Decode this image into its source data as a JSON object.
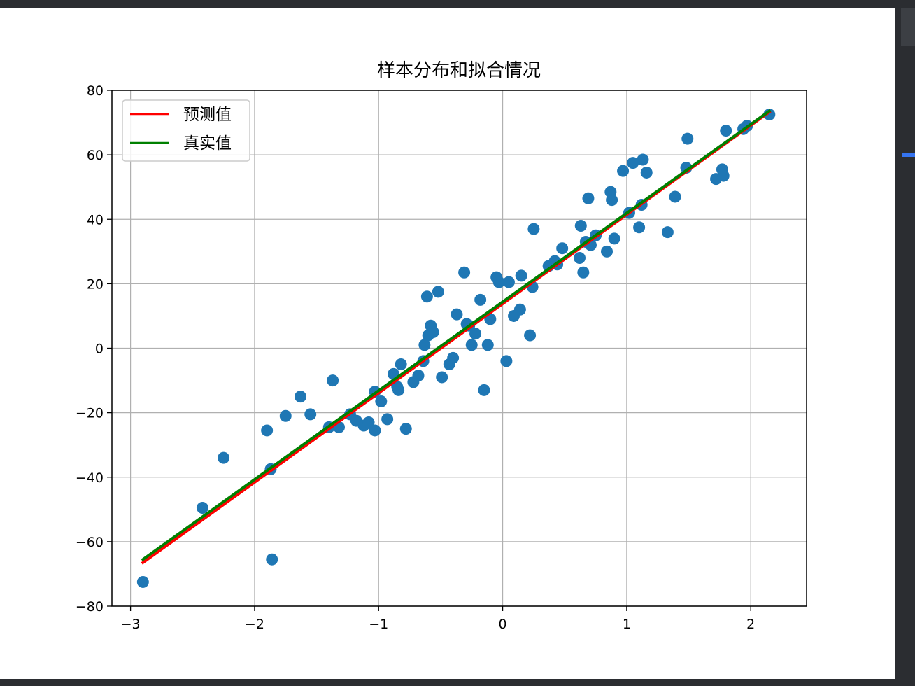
{
  "colors": {
    "scatter": "#1f77b4",
    "predicted": "#ff0000",
    "actual": "#008000",
    "grid": "#b0b0b0",
    "axes": "#000000"
  },
  "chart_data": {
    "type": "scatter",
    "title": "样本分布和拟合情况",
    "xlabel": "",
    "ylabel": "",
    "xlim": [
      -3.15,
      2.45
    ],
    "ylim": [
      -80,
      80
    ],
    "xticks": [
      -3,
      -2,
      -1,
      0,
      1,
      2
    ],
    "yticks": [
      -80,
      -60,
      -40,
      -20,
      0,
      20,
      40,
      60,
      80
    ],
    "grid": true,
    "legend_position": "upper-left",
    "points": [
      [
        -2.9,
        -72.5
      ],
      [
        -2.42,
        -49.5
      ],
      [
        -2.25,
        -34
      ],
      [
        -1.9,
        -25.5
      ],
      [
        -1.87,
        -37.5
      ],
      [
        -1.86,
        -65.5
      ],
      [
        -1.75,
        -21
      ],
      [
        -1.63,
        -15
      ],
      [
        -1.55,
        -20.5
      ],
      [
        -1.4,
        -24.5
      ],
      [
        -1.37,
        -10
      ],
      [
        -1.32,
        -24.5
      ],
      [
        -1.23,
        -20.5
      ],
      [
        -1.18,
        -22.5
      ],
      [
        -1.12,
        -24
      ],
      [
        -1.08,
        -23
      ],
      [
        -1.03,
        -25.5
      ],
      [
        -1.03,
        -13.5
      ],
      [
        -0.98,
        -16.5
      ],
      [
        -0.93,
        -22
      ],
      [
        -0.88,
        -8
      ],
      [
        -0.85,
        -12
      ],
      [
        -0.84,
        -13
      ],
      [
        -0.82,
        -5
      ],
      [
        -0.78,
        -25
      ],
      [
        -0.72,
        -10.5
      ],
      [
        -0.68,
        -8.5
      ],
      [
        -0.64,
        -4
      ],
      [
        -0.63,
        1
      ],
      [
        -0.61,
        16
      ],
      [
        -0.6,
        4
      ],
      [
        -0.58,
        7
      ],
      [
        -0.56,
        5
      ],
      [
        -0.52,
        17.5
      ],
      [
        -0.49,
        -9
      ],
      [
        -0.43,
        -5
      ],
      [
        -0.4,
        -3
      ],
      [
        -0.37,
        10.5
      ],
      [
        -0.31,
        23.5
      ],
      [
        -0.29,
        7.5
      ],
      [
        -0.27,
        7
      ],
      [
        -0.25,
        1
      ],
      [
        -0.22,
        4.5
      ],
      [
        -0.18,
        15
      ],
      [
        -0.15,
        -13
      ],
      [
        -0.12,
        1
      ],
      [
        -0.1,
        9
      ],
      [
        -0.05,
        22
      ],
      [
        -0.03,
        20.5
      ],
      [
        0.03,
        -4
      ],
      [
        0.05,
        20.5
      ],
      [
        0.09,
        10
      ],
      [
        0.14,
        12
      ],
      [
        0.15,
        22.5
      ],
      [
        0.22,
        4
      ],
      [
        0.24,
        19
      ],
      [
        0.25,
        37
      ],
      [
        0.37,
        25.5
      ],
      [
        0.42,
        27
      ],
      [
        0.44,
        26
      ],
      [
        0.48,
        31
      ],
      [
        0.62,
        28
      ],
      [
        0.63,
        38
      ],
      [
        0.65,
        23.5
      ],
      [
        0.67,
        33
      ],
      [
        0.69,
        46.5
      ],
      [
        0.71,
        32
      ],
      [
        0.75,
        35
      ],
      [
        0.84,
        30
      ],
      [
        0.87,
        48.5
      ],
      [
        0.88,
        46
      ],
      [
        0.9,
        34
      ],
      [
        0.97,
        55
      ],
      [
        1.02,
        42
      ],
      [
        1.05,
        57.5
      ],
      [
        1.1,
        37.5
      ],
      [
        1.12,
        44.5
      ],
      [
        1.13,
        58.5
      ],
      [
        1.16,
        54.5
      ],
      [
        1.33,
        36
      ],
      [
        1.39,
        47
      ],
      [
        1.48,
        56
      ],
      [
        1.49,
        65
      ],
      [
        1.72,
        52.5
      ],
      [
        1.77,
        55.5
      ],
      [
        1.78,
        53.5
      ],
      [
        1.8,
        67.5
      ],
      [
        1.94,
        68
      ],
      [
        1.97,
        69
      ],
      [
        2.15,
        72.5
      ]
    ],
    "series": [
      {
        "name": "预测值",
        "style": "line",
        "color": "#ff0000",
        "x": [
          -2.9,
          2.15
        ],
        "y": [
          -66.5,
          73.3
        ]
      },
      {
        "name": "真实值",
        "style": "line",
        "color": "#008000",
        "x": [
          -2.9,
          2.15
        ],
        "y": [
          -65.5,
          73.6
        ]
      }
    ]
  }
}
